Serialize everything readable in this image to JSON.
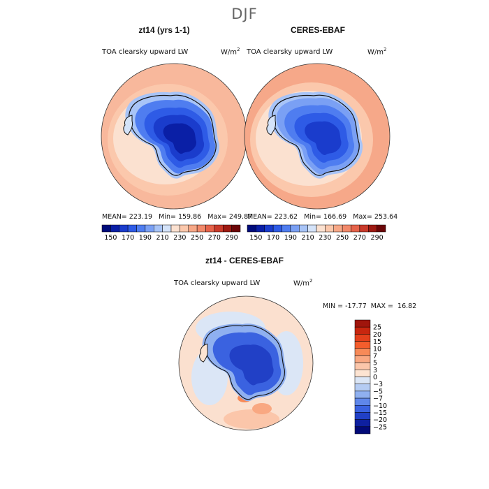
{
  "figure": {
    "title": "DJF"
  },
  "panels": [
    {
      "id": "model",
      "title": "zt14 (yrs 1-1)",
      "variable": "TOA clearsky upward LW",
      "units_base": "W/m",
      "units_exp": "2",
      "stats": {
        "mean_label": "MEAN=",
        "mean": "223.19",
        "min_label": "Min=",
        "min": "159.86",
        "max_label": "Max=",
        "max": "249.87"
      }
    },
    {
      "id": "obs",
      "title": "CERES-EBAF",
      "variable": "TOA clearsky upward LW",
      "units_base": "W/m",
      "units_exp": "2",
      "stats": {
        "mean_label": "MEAN=",
        "mean": "223.62",
        "min_label": "Min=",
        "min": "166.69",
        "max_label": "Max=",
        "max": "253.64"
      }
    },
    {
      "id": "diff",
      "title": "zt14 - CERES-EBAF",
      "variable": "TOA clearsky upward LW",
      "units_base": "W/m",
      "units_exp": "2",
      "stats": {
        "min_label": "MIN =",
        "min": "-17.77",
        "max_label": "MAX =",
        "max": "16.82"
      }
    }
  ],
  "chart_data": [
    {
      "type": "heatmap",
      "projection": "south-polar-stereographic",
      "title": "zt14 (yrs 1-1)",
      "colorbar": {
        "orientation": "horizontal",
        "levels": [
          150,
          160,
          170,
          180,
          190,
          200,
          210,
          220,
          230,
          240,
          250,
          260,
          270,
          280,
          290
        ],
        "tick_labels": [
          "150",
          "170",
          "190",
          "210",
          "230",
          "250",
          "270",
          "290"
        ],
        "colors": [
          "#000c7b",
          "#0a1fa6",
          "#1a3ccc",
          "#2e5be6",
          "#4f7df0",
          "#7aa0f4",
          "#a8c4f7",
          "#d4e3f9",
          "#fbe1d0",
          "#fbc8ac",
          "#f7a887",
          "#f2896a",
          "#e6634a",
          "#c93a2a",
          "#9e1a12",
          "#6b0608"
        ]
      },
      "colors": {
        "ocean": "#f8b89c",
        "ice_edge": "#fbe1d0",
        "interior": "#1a3ccc"
      }
    },
    {
      "type": "heatmap",
      "projection": "south-polar-stereographic",
      "title": "CERES-EBAF",
      "colorbar": {
        "orientation": "horizontal",
        "levels": [
          150,
          160,
          170,
          180,
          190,
          200,
          210,
          220,
          230,
          240,
          250,
          260,
          270,
          280,
          290
        ],
        "tick_labels": [
          "150",
          "170",
          "190",
          "210",
          "230",
          "250",
          "270",
          "290"
        ]
      },
      "colors": {
        "ocean": "#f6a889",
        "ice_edge": "#fbe1d0",
        "interior": "#1f46d6"
      }
    },
    {
      "type": "heatmap",
      "projection": "south-polar-stereographic",
      "title": "zt14 - CERES-EBAF",
      "colorbar": {
        "orientation": "vertical",
        "levels": [
          -25,
          -20,
          -15,
          -10,
          -7,
          -5,
          -3,
          0,
          3,
          5,
          7,
          10,
          15,
          20,
          25
        ],
        "tick_labels": [
          "25",
          "20",
          "15",
          "10",
          "7",
          "5",
          "3",
          "0",
          "−3",
          "−5",
          "−7",
          "−10",
          "−15",
          "−20",
          "−25"
        ],
        "colors_top_to_bottom": [
          "#a0150c",
          "#c8260f",
          "#e4401c",
          "#f45d2c",
          "#f78a58",
          "#f9a882",
          "#fbc6aa",
          "#fde4d2",
          "#dbe6f6",
          "#b5ccf3",
          "#8fb0f0",
          "#5f87ea",
          "#3a62e0",
          "#2140c6",
          "#0e20a0",
          "#020a78"
        ]
      },
      "colors": {
        "ocean": "#fbe0cf",
        "ocean_alt": "#dbe6f6",
        "interior": "#3a62e0"
      }
    }
  ]
}
